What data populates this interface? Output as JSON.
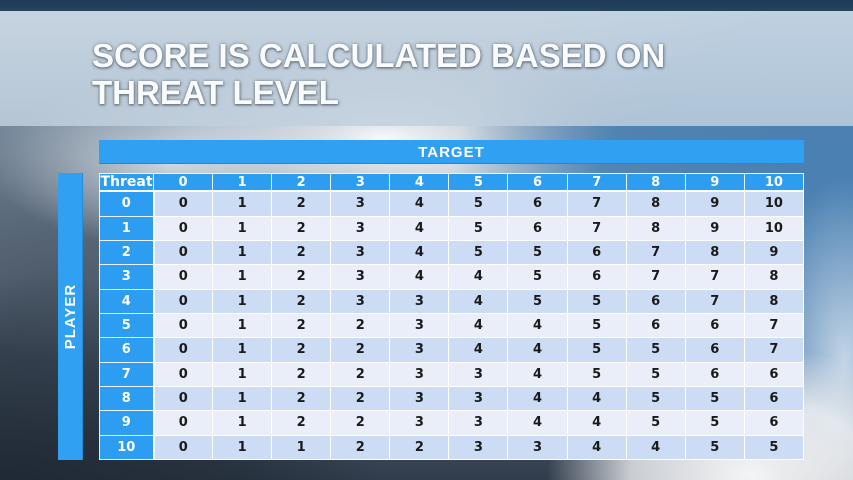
{
  "title": {
    "line1": "SCORE IS CALCULATED BASED ON",
    "line2": "THREAT LEVEL"
  },
  "target_bar": {
    "label": "TARGET"
  },
  "player_bar": {
    "label": "PLAYER"
  },
  "table": {
    "corner_label": "Threat",
    "column_headers": [
      "0",
      "1",
      "2",
      "3",
      "4",
      "5",
      "6",
      "7",
      "8",
      "9",
      "10"
    ],
    "rows": [
      {
        "label": "0",
        "values": [
          0,
          1,
          2,
          3,
          4,
          5,
          6,
          7,
          8,
          9,
          10
        ]
      },
      {
        "label": "1",
        "values": [
          0,
          1,
          2,
          3,
          4,
          5,
          6,
          7,
          8,
          9,
          10
        ]
      },
      {
        "label": "2",
        "values": [
          0,
          1,
          2,
          3,
          4,
          5,
          5,
          6,
          7,
          8,
          9
        ]
      },
      {
        "label": "3",
        "values": [
          0,
          1,
          2,
          3,
          4,
          4,
          5,
          6,
          7,
          7,
          8
        ]
      },
      {
        "label": "4",
        "values": [
          0,
          1,
          2,
          3,
          3,
          4,
          5,
          5,
          6,
          7,
          8
        ]
      },
      {
        "label": "5",
        "values": [
          0,
          1,
          2,
          2,
          3,
          4,
          4,
          5,
          6,
          6,
          7
        ]
      },
      {
        "label": "6",
        "values": [
          0,
          1,
          2,
          2,
          3,
          4,
          4,
          5,
          5,
          6,
          7
        ]
      },
      {
        "label": "7",
        "values": [
          0,
          1,
          2,
          2,
          3,
          3,
          4,
          5,
          5,
          6,
          6
        ]
      },
      {
        "label": "8",
        "values": [
          0,
          1,
          2,
          2,
          3,
          3,
          4,
          4,
          5,
          5,
          6
        ]
      },
      {
        "label": "9",
        "values": [
          0,
          1,
          2,
          2,
          3,
          3,
          4,
          4,
          5,
          5,
          6
        ]
      },
      {
        "label": "10",
        "values": [
          0,
          1,
          1,
          2,
          2,
          3,
          3,
          4,
          4,
          5,
          5
        ]
      }
    ]
  },
  "colors": {
    "accent_blue": "#2FA0F2",
    "band_dark": "#CBDCF4",
    "band_light": "#E9EEF9",
    "top_strip": "#1D3A59",
    "title_text": "#FAFBFC",
    "cell_text": "#1A1A1A"
  }
}
